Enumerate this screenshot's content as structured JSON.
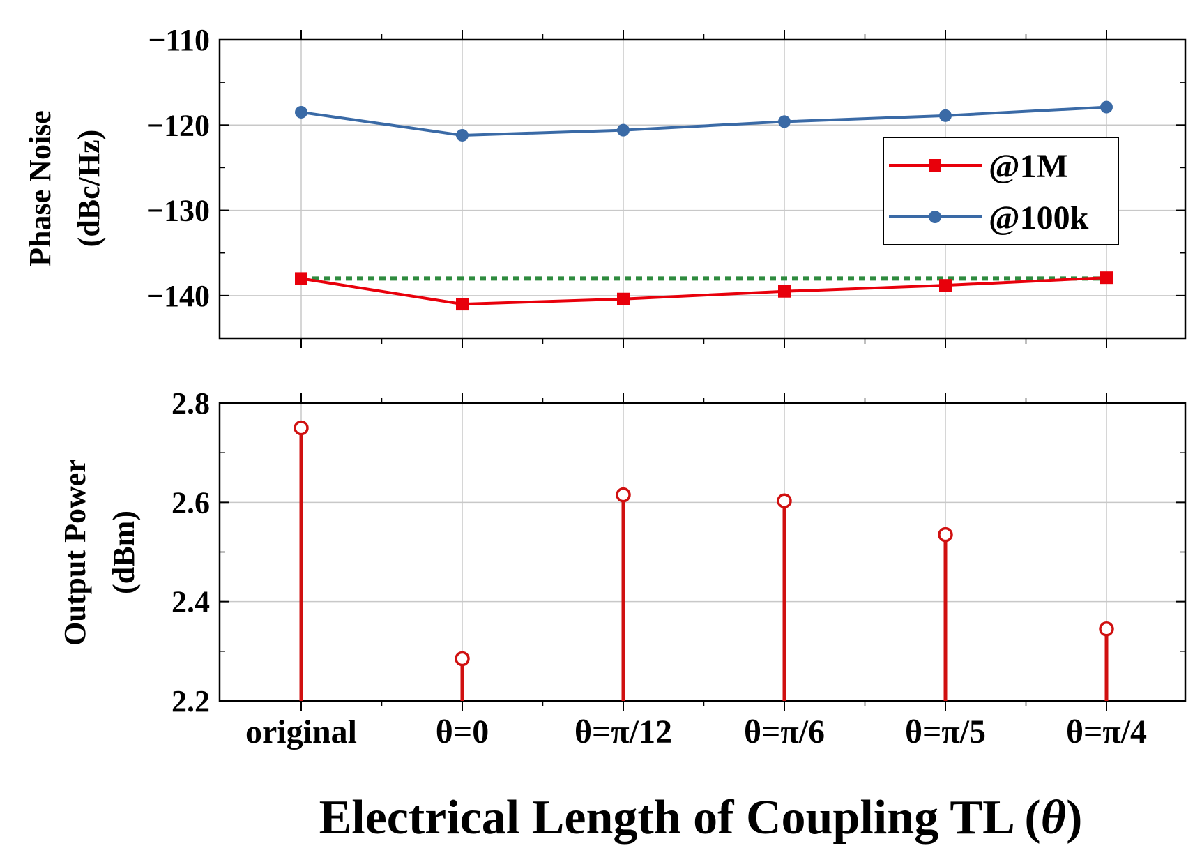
{
  "chart_data": [
    {
      "type": "line",
      "categories": [
        "original",
        "θ=0",
        "θ=π/12",
        "θ=π/6",
        "θ=π/5",
        "θ=π/4"
      ],
      "ylabel": "Phase Noise",
      "ylabel_unit": "(dBc/Hz)",
      "ylim": [
        -145,
        -110
      ],
      "yticks": [
        -110,
        -120,
        -130,
        -140
      ],
      "yticks_text": [
        "−110",
        "−120",
        "−130",
        "−140"
      ],
      "grid": true,
      "series": [
        {
          "name": "@1M",
          "values": [
            -138.0,
            -141.0,
            -140.4,
            -139.5,
            -138.8,
            -137.9
          ],
          "color": "#e8000b",
          "marker": "square"
        },
        {
          "name": "@100k",
          "values": [
            -118.5,
            -121.2,
            -120.6,
            -119.6,
            -118.9,
            -117.9
          ],
          "color": "#3a6aa6",
          "marker": "circle"
        }
      ],
      "reference_line": {
        "value": -138.0,
        "color": "#2e8b3e",
        "style": "dotted"
      },
      "legend": {
        "position": "top-right",
        "entries": [
          "@1M",
          "@100k"
        ]
      }
    },
    {
      "type": "stem",
      "categories": [
        "original",
        "θ=0",
        "θ=π/12",
        "θ=π/6",
        "θ=π/5",
        "θ=π/4"
      ],
      "ylabel": "Output Power",
      "ylabel_unit": "(dBm)",
      "ylim": [
        2.2,
        2.8
      ],
      "yticks": [
        2.2,
        2.4,
        2.6,
        2.8
      ],
      "yticks_text": [
        "2.2",
        "2.4",
        "2.6",
        "2.8"
      ],
      "grid": true,
      "series": [
        {
          "name": "Output Power",
          "values": [
            2.75,
            2.285,
            2.615,
            2.603,
            2.535,
            2.345
          ],
          "color": "#d01010",
          "marker": "open-circle"
        }
      ]
    }
  ],
  "xlabel_main": "Electrical Length of Coupling TL (",
  "xlabel_theta": "θ",
  "xlabel_close": ")"
}
